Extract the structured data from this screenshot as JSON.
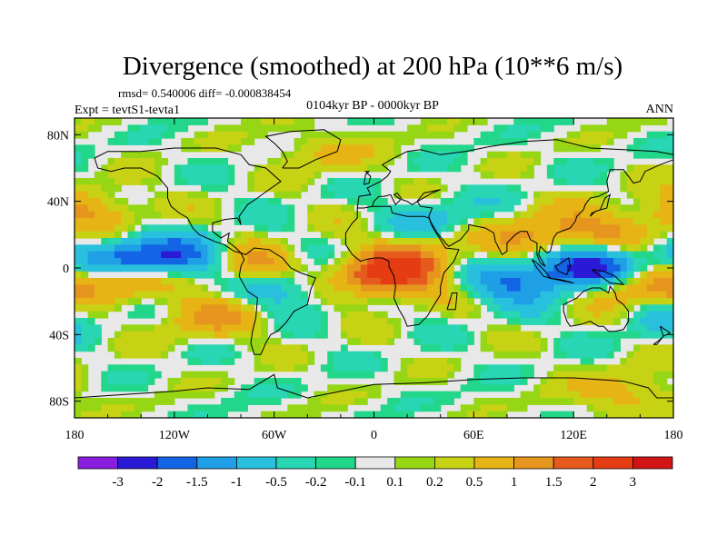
{
  "chart_data": {
    "type": "heatmap",
    "title": "Divergence (smoothed) at 200 hPa (10**6 m/s)",
    "stats_line": "rmsd= 0.540006 diff= -0.000838454",
    "left_label": "Expt = tevtS1-tevta1",
    "center_label": "0104kyr BP - 0000kyr BP",
    "right_label": "ANN",
    "x_ticks": [
      "180",
      "120W",
      "60W",
      "0",
      "60E",
      "120E",
      "180"
    ],
    "x_tick_values": [
      -180,
      -120,
      -60,
      0,
      60,
      120,
      180
    ],
    "y_ticks": [
      "80N",
      "40N",
      "0",
      "40S",
      "80S"
    ],
    "y_tick_values": [
      80,
      40,
      0,
      -40,
      -80
    ],
    "xlim": [
      -180,
      180
    ],
    "ylim": [
      -90,
      90
    ],
    "colorbar": {
      "levels": [
        "-3",
        "-2",
        "-1.5",
        "-1",
        "-0.5",
        "-0.2",
        "-0.1",
        "0.1",
        "0.2",
        "0.5",
        "1",
        "1.5",
        "2",
        "3"
      ],
      "colors": [
        "#8a1ee0",
        "#2a1ad6",
        "#1464e6",
        "#1e9fe6",
        "#28c0dc",
        "#28d6b4",
        "#22d68a",
        "#e8e8e8",
        "#96d614",
        "#c8d214",
        "#e6b414",
        "#e6961e",
        "#e65a1e",
        "#e63c14",
        "#d21414"
      ]
    },
    "features": [
      {
        "lon": -150,
        "lat": 4,
        "value": -2.2
      },
      {
        "lon": -110,
        "lat": 6,
        "value": -1.5
      },
      {
        "lon": -155,
        "lat": -6,
        "value": 1.8
      },
      {
        "lon": -75,
        "lat": 0,
        "value": 1.6
      },
      {
        "lon": -55,
        "lat": -10,
        "value": -1.2
      },
      {
        "lon": 5,
        "lat": -6,
        "value": 2.0
      },
      {
        "lon": 25,
        "lat": 5,
        "value": 1.2
      },
      {
        "lon": 85,
        "lat": -8,
        "value": -1.5
      },
      {
        "lon": 130,
        "lat": 0,
        "value": -2.8
      },
      {
        "lon": 150,
        "lat": -10,
        "value": 1.6
      },
      {
        "lon": 100,
        "lat": 18,
        "value": 1.4
      },
      {
        "lon": 140,
        "lat": 25,
        "value": 0.8
      },
      {
        "lon": -170,
        "lat": 35,
        "value": 1.0
      },
      {
        "lon": 40,
        "lat": 30,
        "value": -0.6
      },
      {
        "lon": -100,
        "lat": -30,
        "value": 1.0
      },
      {
        "lon": 170,
        "lat": -30,
        "value": -0.5
      },
      {
        "lon": -30,
        "lat": 70,
        "value": 0.6
      },
      {
        "lon": 150,
        "lat": -75,
        "value": 0.8
      }
    ]
  }
}
